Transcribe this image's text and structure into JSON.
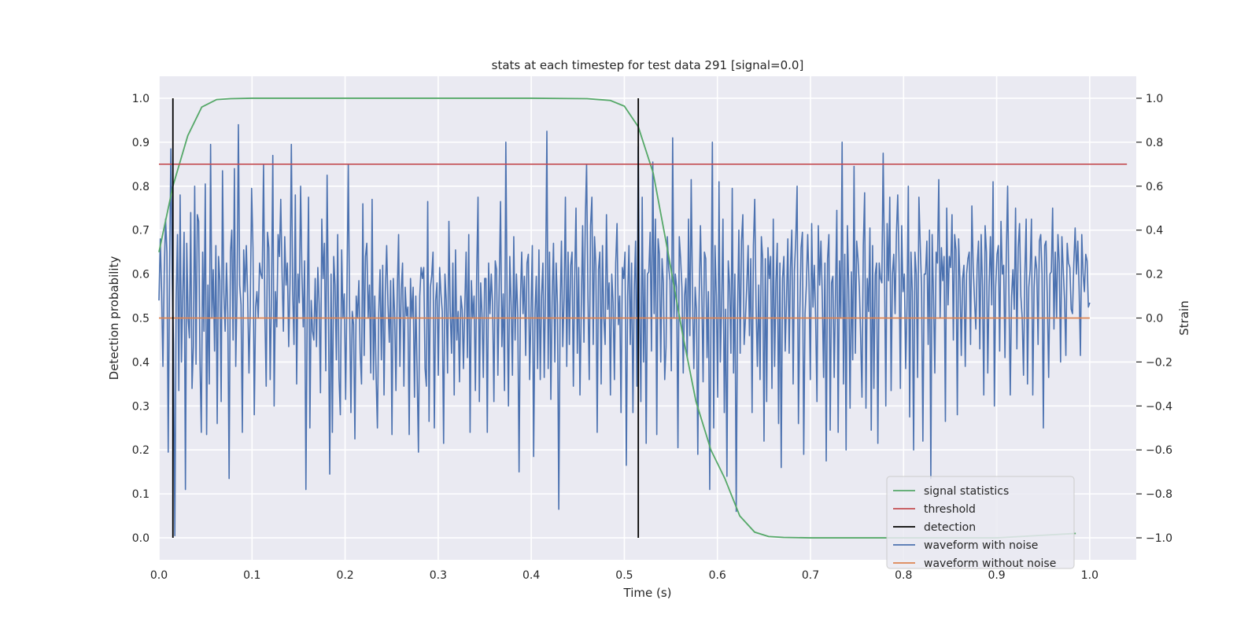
{
  "chart_data": {
    "type": "line",
    "title": "stats at each timestep for test data 291 [signal=0.0]",
    "xlabel": "Time (s)",
    "ylabel": "Detection probability",
    "y2label": "Strain",
    "xlim": [
      0.0,
      1.05
    ],
    "ylim": [
      -0.05,
      1.05
    ],
    "y2lim": [
      -1.1,
      1.1
    ],
    "xticks": [
      0.0,
      0.1,
      0.2,
      0.3,
      0.4,
      0.5,
      0.6,
      0.7,
      0.8,
      0.9,
      1.0
    ],
    "xtick_labels": [
      "0.0",
      "0.1",
      "0.2",
      "0.3",
      "0.4",
      "0.5",
      "0.6",
      "0.7",
      "0.8",
      "0.9",
      "1.0"
    ],
    "yticks": [
      0.0,
      0.1,
      0.2,
      0.3,
      0.4,
      0.5,
      0.6,
      0.7,
      0.8,
      0.9,
      1.0
    ],
    "ytick_labels": [
      "0.0",
      "0.1",
      "0.2",
      "0.3",
      "0.4",
      "0.5",
      "0.6",
      "0.7",
      "0.8",
      "0.9",
      "1.0"
    ],
    "y2ticks": [
      -1.0,
      -0.8,
      -0.6,
      -0.4,
      -0.2,
      0.0,
      0.2,
      0.4,
      0.6,
      0.8,
      1.0
    ],
    "y2tick_labels": [
      "−1.0",
      "−0.8",
      "−0.6",
      "−0.4",
      "−0.2",
      "0.0",
      "0.2",
      "0.4",
      "0.6",
      "0.8",
      "1.0"
    ],
    "grid": true,
    "legend_position": "lower-right",
    "colors": {
      "background": "#eaeaf2",
      "grid": "#ffffff",
      "signal_statistics": "#55a868",
      "threshold": "#c44e52",
      "detection": "#000000",
      "waveform_with_noise": "#4c72b0",
      "waveform_without_noise": "#dd8452"
    },
    "series": [
      {
        "name": "signal statistics",
        "axis": "left",
        "x": [
          0.0,
          0.015,
          0.031,
          0.046,
          0.062,
          0.077,
          0.1,
          0.2,
          0.3,
          0.4,
          0.46,
          0.485,
          0.5,
          0.515,
          0.531,
          0.546,
          0.562,
          0.577,
          0.593,
          0.608,
          0.624,
          0.64,
          0.655,
          0.671,
          0.7,
          0.8,
          0.9,
          0.985
        ],
        "values": [
          0.65,
          0.8,
          0.915,
          0.98,
          0.997,
          0.999,
          1.0,
          1.0,
          1.0,
          1.0,
          0.999,
          0.995,
          0.982,
          0.935,
          0.83,
          0.66,
          0.47,
          0.31,
          0.2,
          0.135,
          0.05,
          0.013,
          0.003,
          0.001,
          0.0,
          0.0,
          0.0,
          0.01
        ]
      },
      {
        "name": "threshold",
        "axis": "left",
        "x": [
          0.0,
          1.04
        ],
        "values": [
          0.85,
          0.85
        ]
      },
      {
        "name": "detection",
        "axis": "left",
        "x_positions": [
          0.015,
          0.515
        ],
        "range": [
          0.0,
          1.0
        ]
      },
      {
        "name": "waveform with noise",
        "axis": "right",
        "x_range": [
          0.0,
          1.0
        ],
        "values": [
          0.08,
          0.36,
          0.12,
          -0.22,
          0.21,
          0.45,
          0.3,
          -0.61,
          0.19,
          0.77,
          0.2,
          -0.12,
          -0.99,
          0.08,
          0.38,
          -0.33,
          0.56,
          -0.2,
          0.11,
          0.39,
          -0.78,
          0.34,
          0.0,
          -0.09,
          0.48,
          -0.32,
          -0.13,
          0.6,
          -0.21,
          0.47,
          0.44,
          -0.2,
          -0.52,
          0.3,
          -0.06,
          0.61,
          -0.53,
          0.15,
          -0.3,
          0.79,
          0.0,
          0.22,
          -0.15,
          0.33,
          -0.48,
          0.28,
          0.17,
          -0.38,
          0.67,
          0.12,
          -0.06,
          0.25,
          0.02,
          -0.73,
          0.3,
          0.4,
          -0.1,
          0.68,
          -0.22,
          0.12,
          0.88,
          0.15,
          0.06,
          -0.52,
          0.31,
          0.12,
          0.33,
          0.1,
          -0.25,
          0.05,
          0.59,
          0.32,
          -0.44,
          0.05,
          0.12,
          0.0,
          0.25,
          0.2,
          0.18,
          0.7,
          0.02,
          -0.31,
          0.39,
          0.32,
          -0.28,
          0.1,
          0.74,
          -0.4,
          0.12,
          -0.04,
          0.38,
          0.28,
          0.54,
          0.2,
          -0.06,
          0.37,
          0.15,
          0.25,
          -0.13,
          0.16,
          0.79,
          0.12,
          -0.12,
          0.56,
          -0.3,
          0.2,
          0.07,
          0.6,
          0.2,
          -0.04,
          0.26,
          -0.78,
          0.05,
          0.55,
          -0.5,
          0.08,
          -0.06,
          -0.1,
          0.18,
          -0.13,
          0.23,
          0.06,
          -0.34,
          0.45,
          0.18,
          0.34,
          -0.24,
          0.65,
          0.05,
          -0.71,
          0.2,
          -0.52,
          0.28,
          0.15,
          -0.19,
          0.38,
          -0.27,
          -0.44,
          0.31,
          0.0,
          0.11,
          -0.37,
          0.12,
          0.7,
          0.04,
          -0.43,
          0.03,
          -0.03,
          -0.55,
          0.1,
          0.0,
          0.17,
          -0.16,
          -0.3,
          0.52,
          -0.17,
          0.28,
          0.34,
          0.0,
          0.15,
          -0.25,
          0.54,
          -0.28,
          0.1,
          -0.26,
          -0.5,
          0.02,
          0.22,
          -0.19,
          0.24,
          -0.35,
          0.12,
          0.33,
          0.06,
          -0.11,
          0.17,
          -0.53,
          0.18,
          0.02,
          -0.33,
          0.12,
          0.38,
          -0.22,
          0.13,
          0.25,
          -0.31,
          0.14,
          0.01,
          0.05,
          -0.53,
          0.18,
          0.0,
          0.14,
          -0.36,
          0.1,
          -0.25,
          -0.61,
          0.1,
          0.23,
          0.18,
          0.23,
          -0.23,
          -0.31,
          0.53,
          -0.47,
          0.14,
          0.19,
          0.3,
          -0.5,
          0.08,
          0.16,
          -0.26,
          0.23,
          0.11,
          0.03,
          -0.57,
          0.2,
          0.08,
          -0.25,
          0.44,
          0.03,
          -0.16,
          0.25,
          -0.35,
          0.31,
          -0.1,
          0.03,
          -0.29,
          0.1,
          0.04,
          -0.23,
          0.05,
          0.3,
          -0.18,
          0.38,
          -0.52,
          0.17,
          0.0,
          0.1,
          -0.33,
          0.2,
          0.55,
          -0.38,
          0.16,
          0.02,
          -0.27,
          0.18,
          0.18,
          -0.52,
          0.25,
          0.02,
          0.2,
          0.06,
          -0.38,
          0.26,
          0.22,
          -0.26,
          0.14,
          0.53,
          -0.13,
          0.11,
          -0.33,
          0.8,
          0.05,
          -0.4,
          0.28,
          0.06,
          -0.26,
          0.37,
          -0.1,
          0.2,
          0.02,
          -0.7,
          0.08,
          0.3,
          0.02,
          0.19,
          -0.17,
          0.25,
          0.29,
          -0.28,
          0.02,
          0.33,
          -0.63,
          0.02,
          0.19,
          -0.23,
          0.31,
          -0.28,
          0.1,
          0.25,
          -0.27,
          0.14,
          0.85,
          -0.23,
          0.3,
          -0.37,
          0.1,
          0.34,
          -0.2,
          0.25,
          0.06,
          -0.87,
          0.03,
          0.35,
          -0.13,
          0.09,
          0.55,
          -0.22,
          0.3,
          -0.12,
          0.24,
          0.3,
          -0.31,
          0.18,
          0.5,
          -0.16,
          0.23,
          -0.35,
          0.05,
          0.42,
          -0.11,
          0.44,
          0.7,
          0.1,
          -0.28,
          0.42,
          0.55,
          -0.12,
          0.37,
          0.24,
          -0.52,
          0.22,
          0.3,
          -0.3,
          0.33,
          0.0,
          -0.12,
          0.47,
          0.04,
          0.16,
          -0.35,
          0.2,
          0.07,
          -0.28,
          0.25,
          0.43,
          -0.03,
          0.1,
          -0.43,
          0.23,
          0.18,
          0.3,
          -0.67,
          0.1,
          0.33,
          -0.12,
          0.25,
          -0.43,
          0.13,
          0.35,
          -0.31,
          0.78,
          0.05,
          -0.38,
          0.55,
          -0.2,
          0.22,
          -0.57,
          0.2,
          0.21,
          0.39,
          -0.15,
          0.71,
          0.02,
          0.45,
          -0.53,
          0.36,
          0.29,
          -0.2,
          0.27,
          0.16,
          -0.28,
          -0.13,
          0.37,
          0.23,
          0.17,
          -0.24,
          0.82,
          0.0,
          0.2,
          0.14,
          -0.59,
          0.37,
          0.27,
          0.14,
          -0.25,
          0.1,
          0.18,
          -0.18,
          0.45,
          -0.08,
          0.63,
          0.1,
          -0.23,
          0.14,
          0.03,
          -0.62,
          0.08,
          0.42,
          0.12,
          -0.29,
          0.3,
          0.27,
          -0.18,
          0.12,
          -0.78,
          0.05,
          0.8,
          -0.5,
          0.33,
          0.1,
          -0.36,
          0.62,
          -0.2,
          0.06,
          0.45,
          -0.43,
          0.04,
          -0.72,
          0.26,
          0.15,
          -0.16,
          0.59,
          -0.25,
          0.2,
          -0.88,
          0.02,
          0.4,
          -0.16,
          0.35,
          0.47,
          -0.12,
          0.0,
          0.15,
          0.33,
          -0.08,
          0.27,
          -0.43,
          0.33,
          0.54,
          0.05,
          -0.22,
          0.15,
          -0.28,
          0.37,
          0.27,
          -0.56,
          0.27,
          -0.38,
          0.32,
          0.18,
          0.28,
          -0.32,
          0.45,
          -0.22,
          0.16,
          0.34,
          -0.48,
          0.25,
          -0.68,
          0.18,
          0.28,
          -0.15,
          0.08,
          0.36,
          -0.16,
          0.23,
          0.4,
          -0.3,
          0.22,
          0.36,
          0.6,
          -0.48,
          0.0,
          0.32,
          0.39,
          -0.62,
          0.02,
          0.15,
          0.38,
          0.16,
          -0.28,
          0.43,
          0.05,
          0.24,
          0.0,
          -0.38,
          0.42,
          0.15,
          0.35,
          0.1,
          -0.27,
          0.25,
          -0.65,
          0.27,
          0.38,
          -0.51,
          0.16,
          0.19,
          -0.27,
          0.11,
          0.49,
          -0.52,
          0.26,
          0.0,
          0.8,
          -0.3,
          0.29,
          -0.6,
          0.42,
          0.13,
          -0.41,
          0.21,
          -0.19,
          0.69,
          -0.16,
          0.35,
          0.27,
          0.14,
          -0.09,
          -0.36,
          0.33,
          0.57,
          -0.41,
          0.18,
          0.03,
          0.41,
          -0.51,
          0.33,
          -0.32,
          0.2,
          0.25,
          -0.57,
          0.25,
          0.18,
          0.16,
          0.75,
          0.23,
          -0.4,
          0.43,
          0.17,
          0.55,
          -0.33,
          0.2,
          0.29,
          0.02,
          0.38,
          0.56,
          0.25,
          -0.32,
          0.42,
          0.12,
          0.2,
          -0.23,
          0.05,
          0.6,
          -0.45,
          0.3,
          0.12,
          -0.6,
          0.3,
          0.2,
          -0.27,
          0.55,
          0.33,
          0.14,
          -0.56,
          0.2,
          0.2,
          0.35,
          -0.12,
          0.4,
          -0.73,
          0.38,
          0.1,
          -0.25,
          0.3,
          0.25,
          0.63,
          0.0,
          0.32,
          0.17,
          0.28,
          -0.47,
          0.5,
          0.06,
          0.28,
          0.23,
          0.47,
          -0.1,
          0.38,
          0.31,
          -0.44,
          0.36,
          0.17,
          -0.17,
          0.18,
          0.24,
          -0.22,
          0.2,
          0.27,
          0.3,
          -0.12,
          0.51,
          0.23,
          0.08,
          -0.05,
          0.24,
          0.35,
          -0.14,
          0.38,
          0.14,
          -0.35,
          0.42,
          0.3,
          -0.25,
          0.14,
          0.37,
          0.06,
          0.62,
          -0.4,
          0.14,
          0.29,
          0.33,
          -0.15,
          0.44,
          0.2,
          0.24,
          -0.18,
          0.28,
          0.6,
          0.1,
          -0.35,
          0.1,
          0.22,
          0.04,
          0.5,
          -0.14,
          0.32,
          0.43,
          0.1,
          0.0,
          -0.26,
          0.2,
          0.45,
          -0.3,
          0.14,
          0.22,
          0.45,
          -0.35,
          0.14,
          0.28,
          0.22,
          -0.12,
          0.35,
          0.38,
          0.2,
          -0.5,
          0.33,
          0.35,
          0.08,
          -0.27,
          0.2,
          0.21,
          0.5,
          -0.05,
          0.3,
          0.0,
          0.38,
          0.25,
          -0.2,
          0.37,
          0.22,
          0.08,
          -0.17,
          0.34,
          0.25,
          0.23,
          0.04,
          0.02,
          0.25,
          0.41,
          0.2,
          0.35,
          0.13,
          -0.17,
          0.38,
          0.2,
          0.12,
          0.29,
          0.26,
          0.05,
          0.07
        ]
      },
      {
        "name": "waveform without noise",
        "axis": "right",
        "x": [
          0.0,
          1.0
        ],
        "values": [
          0.0,
          0.0
        ]
      }
    ]
  }
}
